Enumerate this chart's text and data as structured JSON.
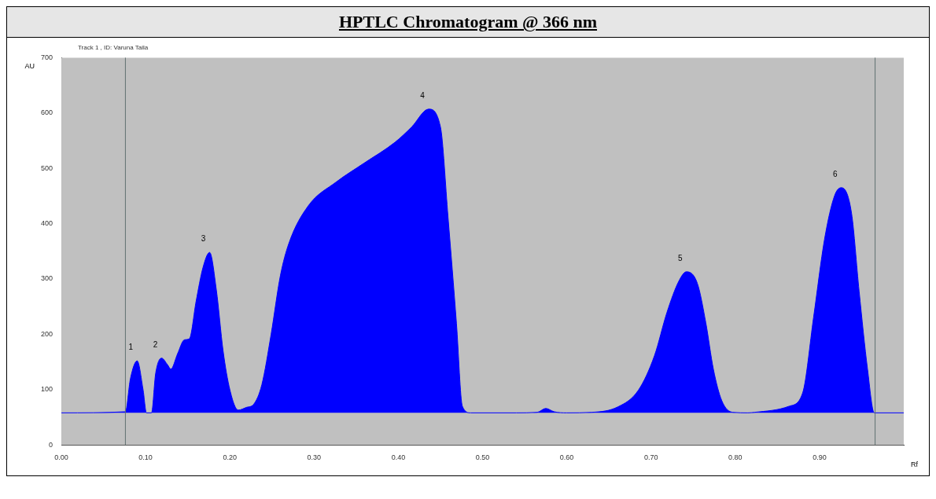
{
  "chart_data": {
    "type": "area",
    "title": "HPTLC Chromatogram @ 366 nm",
    "subtitle": "Track  1 , ID: Varuna Taila",
    "xlabel": "Rf",
    "ylabel": "AU",
    "xlim": [
      0,
      1.0
    ],
    "ylim": [
      0,
      700
    ],
    "xticks": [
      {
        "value": 0,
        "label": "0.00"
      },
      {
        "value": 0.1,
        "label": "0.10"
      },
      {
        "value": 0.2,
        "label": "0.20"
      },
      {
        "value": 0.3,
        "label": "0.30"
      },
      {
        "value": 0.4,
        "label": "0.40"
      },
      {
        "value": 0.5,
        "label": "0.50"
      },
      {
        "value": 0.6,
        "label": "0.60"
      },
      {
        "value": 0.7,
        "label": "0.70"
      },
      {
        "value": 0.8,
        "label": "0.80"
      },
      {
        "value": 0.9,
        "label": "0.90"
      }
    ],
    "yticks": [
      0,
      100,
      200,
      300,
      400,
      500,
      600,
      700
    ],
    "grid": false,
    "legend": false,
    "marker": "none",
    "series": [
      {
        "color": "#0000ff",
        "x": [
          0,
          0.076,
          0.082,
          0.09,
          0.097,
          0.101,
          0.107,
          0.112,
          0.119,
          0.126,
          0.13,
          0.138,
          0.146,
          0.152,
          0.16,
          0.168,
          0.176,
          0.184,
          0.192,
          0.2,
          0.21,
          0.22,
          0.228,
          0.238,
          0.249,
          0.26,
          0.27,
          0.293,
          0.326,
          0.359,
          0.396,
          0.416,
          0.436,
          0.45,
          0.459,
          0.469,
          0.476,
          0.486,
          0.54,
          0.565,
          0.575,
          0.585,
          0.6,
          0.63,
          0.661,
          0.685,
          0.704,
          0.719,
          0.733,
          0.742,
          0.755,
          0.765,
          0.774,
          0.784,
          0.797,
          0.815,
          0.823,
          0.864,
          0.88,
          0.893,
          0.906,
          0.918,
          0.926,
          0.938,
          0.947,
          0.957,
          0.965,
          1.0
        ],
        "values": [
          58,
          60,
          120,
          152,
          100,
          58,
          58,
          130,
          157,
          145,
          137,
          165,
          190,
          192,
          260,
          320,
          348,
          280,
          170,
          100,
          63,
          68,
          73,
          109,
          200,
          306,
          364,
          432,
          475,
          509,
          547,
          575,
          607,
          575,
          412,
          220,
          70,
          58,
          58,
          59,
          66,
          60,
          58,
          59,
          69,
          99,
          161,
          240,
          296,
          313,
          292,
          221,
          137,
          80,
          59,
          58,
          59,
          70,
          94,
          231,
          372,
          451,
          465,
          419,
          278,
          137,
          58,
          58
        ]
      }
    ],
    "ref_lines": [
      {
        "axis": "x",
        "value": 0.076,
        "color": "#607070"
      },
      {
        "axis": "x",
        "value": 0.966,
        "color": "#607070"
      }
    ],
    "annotations": [
      {
        "text": "1",
        "x": 0.09,
        "y": 152
      },
      {
        "text": "2",
        "x": 0.119,
        "y": 157
      },
      {
        "text": "3",
        "x": 0.176,
        "y": 348
      },
      {
        "text": "4",
        "x": 0.436,
        "y": 607
      },
      {
        "text": "5",
        "x": 0.742,
        "y": 313
      },
      {
        "text": "6",
        "x": 0.926,
        "y": 465
      }
    ]
  }
}
